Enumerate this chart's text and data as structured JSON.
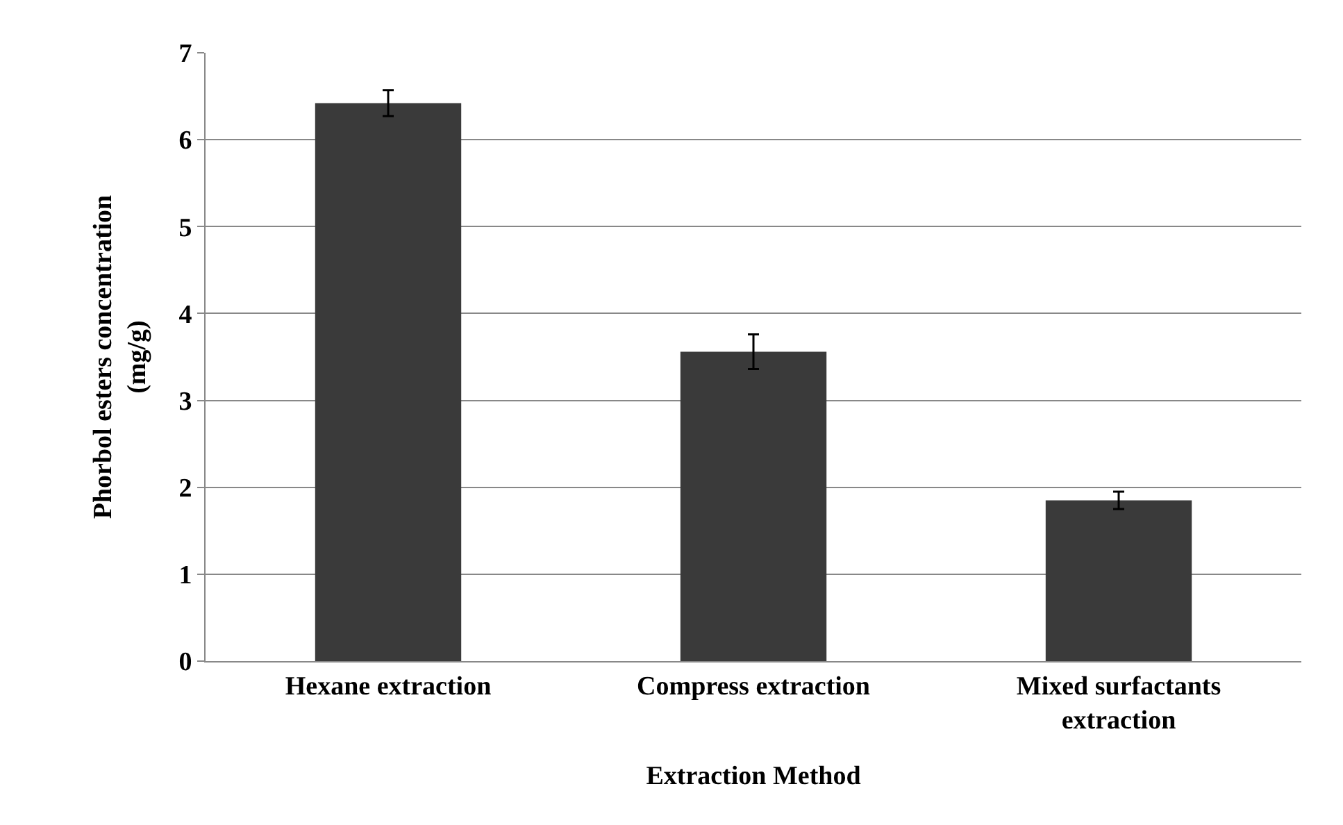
{
  "chart_data": {
    "type": "bar",
    "xlabel": "Extraction Method",
    "ylabel": "Phorbol esters concentration (mg/g)",
    "categories": [
      "Hexane extraction",
      "Compress extraction",
      "Mixed surfactants extraction"
    ],
    "values": [
      6.42,
      3.56,
      1.85
    ],
    "errors": [
      0.15,
      0.2,
      0.1
    ],
    "color": "#3a3a3a",
    "ylim": [
      0,
      7
    ],
    "yticks": [
      0,
      1,
      2,
      3,
      4,
      5,
      6,
      7
    ],
    "grid": "y"
  }
}
